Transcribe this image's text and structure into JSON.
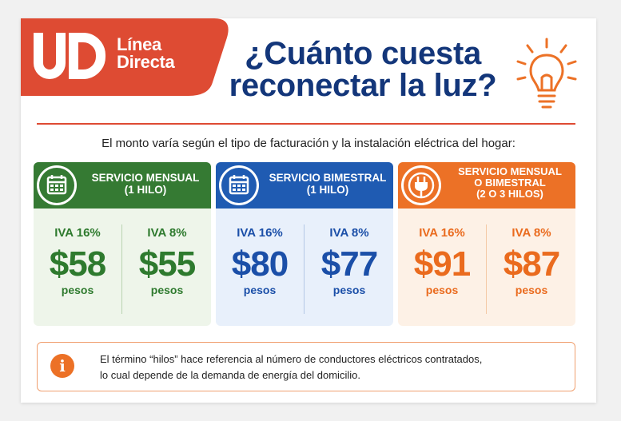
{
  "logo": {
    "brand_line1": "Línea",
    "brand_line2": "Directa",
    "icon": "ud-logo-icon"
  },
  "header": {
    "title_line1": "¿Cuánto cuesta",
    "title_line2": "reconectar la luz?",
    "icon": "lightbulb-icon"
  },
  "intro": "El monto varía según el tipo de facturación y la instalación eléctrica del hogar:",
  "services": [
    {
      "title_lines": [
        "SERVICIO MENSUAL",
        "(1 HILO)"
      ],
      "icon": "calendar-icon",
      "color": "#357a33",
      "prices": [
        {
          "iva": "IVA 16%",
          "amount": "$58",
          "unit": "pesos"
        },
        {
          "iva": "IVA 8%",
          "amount": "$55",
          "unit": "pesos"
        }
      ]
    },
    {
      "title_lines": [
        "SERVICIO BIMESTRAL",
        "(1 HILO)"
      ],
      "icon": "calendar-icon",
      "color": "#1f5bb2",
      "prices": [
        {
          "iva": "IVA 16%",
          "amount": "$80",
          "unit": "pesos"
        },
        {
          "iva": "IVA 8%",
          "amount": "$77",
          "unit": "pesos"
        }
      ]
    },
    {
      "title_lines": [
        "SERVICIO MENSUAL",
        "O BIMESTRAL",
        "(2 O 3 HILOS)"
      ],
      "icon": "plug-icon",
      "color": "#ec7126",
      "prices": [
        {
          "iva": "IVA 16%",
          "amount": "$91",
          "unit": "pesos"
        },
        {
          "iva": "IVA 8%",
          "amount": "$87",
          "unit": "pesos"
        }
      ]
    }
  ],
  "note": {
    "icon": "info-icon",
    "line1": "El término “hilos” hace referencia al número de conductores eléctricos contratados,",
    "line2": "lo cual depende de la demanda de energía del domicilio."
  },
  "colors": {
    "accent_red": "#de4b33",
    "navy": "#13367a",
    "green": "#357a33",
    "blue": "#1f5bb2",
    "orange": "#ec7126"
  }
}
